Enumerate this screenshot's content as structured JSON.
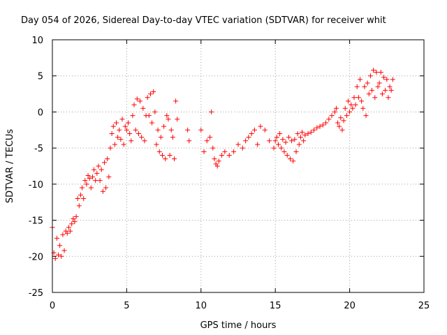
{
  "chart_data": {
    "type": "scatter",
    "title": "Day 054 of 2026, Sidereal Day-to-day VTEC variation (SDTVAR) for receiver whit",
    "xlabel": "GPS time / hours",
    "ylabel": "SDTVAR / TECUs",
    "xlim": [
      0,
      25
    ],
    "ylim": [
      -25,
      10
    ],
    "xticks": [
      0,
      5,
      10,
      15,
      20,
      25
    ],
    "yticks": [
      -25,
      -20,
      -15,
      -10,
      -5,
      0,
      5,
      10
    ],
    "xtick_labels": [
      "0",
      "5",
      "10",
      "15",
      "20",
      "25"
    ],
    "ytick_labels": [
      "-25",
      "-20",
      "-15",
      "-10",
      "-5",
      "0",
      "5",
      "10"
    ],
    "grid": true,
    "marker": "+",
    "series": [
      {
        "name": "SDTVAR",
        "color": "#ff0000",
        "x": [
          0.0,
          0.1,
          0.2,
          0.3,
          0.4,
          0.5,
          0.6,
          0.7,
          0.8,
          0.9,
          1.0,
          1.1,
          1.2,
          1.3,
          1.4,
          1.5,
          1.6,
          1.7,
          1.8,
          1.9,
          2.0,
          2.1,
          2.2,
          2.3,
          2.4,
          2.5,
          2.6,
          2.7,
          2.8,
          2.9,
          3.0,
          3.1,
          3.2,
          3.3,
          3.4,
          3.5,
          3.6,
          3.7,
          3.8,
          3.9,
          4.0,
          4.1,
          4.2,
          4.3,
          4.4,
          4.5,
          4.6,
          4.7,
          4.8,
          4.9,
          5.0,
          5.1,
          5.2,
          5.3,
          5.4,
          5.5,
          5.6,
          5.7,
          5.8,
          5.9,
          6.0,
          6.1,
          6.2,
          6.3,
          6.4,
          6.5,
          6.6,
          6.7,
          6.8,
          6.9,
          7.0,
          7.1,
          7.2,
          7.3,
          7.4,
          7.5,
          7.6,
          7.7,
          7.8,
          7.9,
          8.0,
          8.1,
          8.2,
          8.3,
          8.4,
          9.1,
          9.2,
          10.0,
          10.2,
          10.4,
          10.6,
          10.7,
          10.8,
          10.9,
          11.0,
          11.1,
          11.2,
          11.4,
          11.6,
          11.9,
          12.2,
          12.5,
          12.8,
          13.0,
          13.2,
          13.4,
          13.6,
          13.8,
          14.0,
          14.3,
          14.6,
          14.9,
          15.0,
          15.1,
          15.2,
          15.3,
          15.4,
          15.5,
          15.6,
          15.7,
          15.8,
          15.9,
          16.0,
          16.1,
          16.2,
          16.3,
          16.4,
          16.5,
          16.6,
          16.7,
          16.8,
          16.9,
          17.0,
          17.2,
          17.4,
          17.6,
          17.8,
          18.0,
          18.2,
          18.4,
          18.6,
          18.8,
          19.0,
          19.1,
          19.2,
          19.3,
          19.4,
          19.5,
          19.6,
          19.7,
          19.8,
          19.9,
          20.0,
          20.1,
          20.2,
          20.3,
          20.4,
          20.5,
          20.6,
          20.7,
          20.8,
          20.9,
          21.0,
          21.1,
          21.2,
          21.3,
          21.4,
          21.5,
          21.6,
          21.7,
          21.8,
          21.9,
          22.0,
          22.1,
          22.2,
          22.3,
          22.4,
          22.5,
          22.6,
          22.7,
          22.8,
          22.9
        ],
        "y": [
          -16.0,
          -19.5,
          -20.3,
          -17.5,
          -19.8,
          -18.5,
          -20.0,
          -17.0,
          -19.2,
          -16.5,
          -16.8,
          -16.0,
          -16.5,
          -15.5,
          -14.8,
          -15.2,
          -14.5,
          -12.0,
          -13.0,
          -11.5,
          -10.5,
          -12.0,
          -9.5,
          -10.0,
          -8.8,
          -9.2,
          -10.5,
          -9.0,
          -8.0,
          -9.5,
          -8.5,
          -7.5,
          -9.5,
          -8.0,
          -11.0,
          -7.0,
          -10.5,
          -6.5,
          -9.0,
          -5.0,
          -3.0,
          -2.0,
          -4.5,
          -1.5,
          -3.5,
          -2.5,
          -3.8,
          -1.0,
          -4.5,
          -2.0,
          -2.5,
          -1.5,
          -3.0,
          -4.0,
          -0.5,
          1.0,
          -2.5,
          1.8,
          -3.0,
          1.5,
          -3.5,
          0.5,
          -4.0,
          -0.5,
          2.0,
          -0.5,
          2.5,
          -1.5,
          2.8,
          0.0,
          -4.5,
          -2.5,
          -5.5,
          -3.5,
          -6.0,
          -2.0,
          -6.5,
          -0.5,
          -1.0,
          -6.0,
          -2.5,
          -3.5,
          -6.5,
          1.5,
          -1.0,
          -2.5,
          -4.0,
          -2.5,
          -5.5,
          -4.0,
          -3.5,
          0.0,
          -5.0,
          -6.5,
          -7.2,
          -7.5,
          -6.8,
          -6.0,
          -5.5,
          -6.0,
          -5.5,
          -4.5,
          -5.0,
          -4.0,
          -3.5,
          -3.0,
          -2.5,
          -4.5,
          -2.0,
          -2.5,
          -4.0,
          -5.0,
          -4.0,
          -3.5,
          -4.5,
          -3.0,
          -5.0,
          -3.8,
          -5.5,
          -4.2,
          -6.0,
          -3.5,
          -6.5,
          -4.0,
          -6.8,
          -3.8,
          -5.5,
          -3.0,
          -4.5,
          -3.5,
          -2.8,
          -4.0,
          -3.2,
          -3.0,
          -2.8,
          -2.5,
          -2.2,
          -2.0,
          -1.8,
          -1.5,
          -1.0,
          -0.5,
          0.0,
          0.5,
          -1.5,
          -2.0,
          -0.8,
          -2.5,
          -1.2,
          0.5,
          -0.5,
          1.5,
          0.0,
          1.0,
          0.5,
          2.0,
          1.0,
          3.5,
          2.0,
          4.5,
          1.5,
          0.5,
          3.5,
          -0.5,
          4.0,
          2.5,
          5.0,
          3.0,
          5.8,
          2.0,
          5.5,
          3.5,
          4.0,
          5.5,
          2.5,
          4.8,
          3.0,
          4.5,
          2.0,
          3.5,
          3.0,
          4.5
        ]
      }
    ]
  }
}
